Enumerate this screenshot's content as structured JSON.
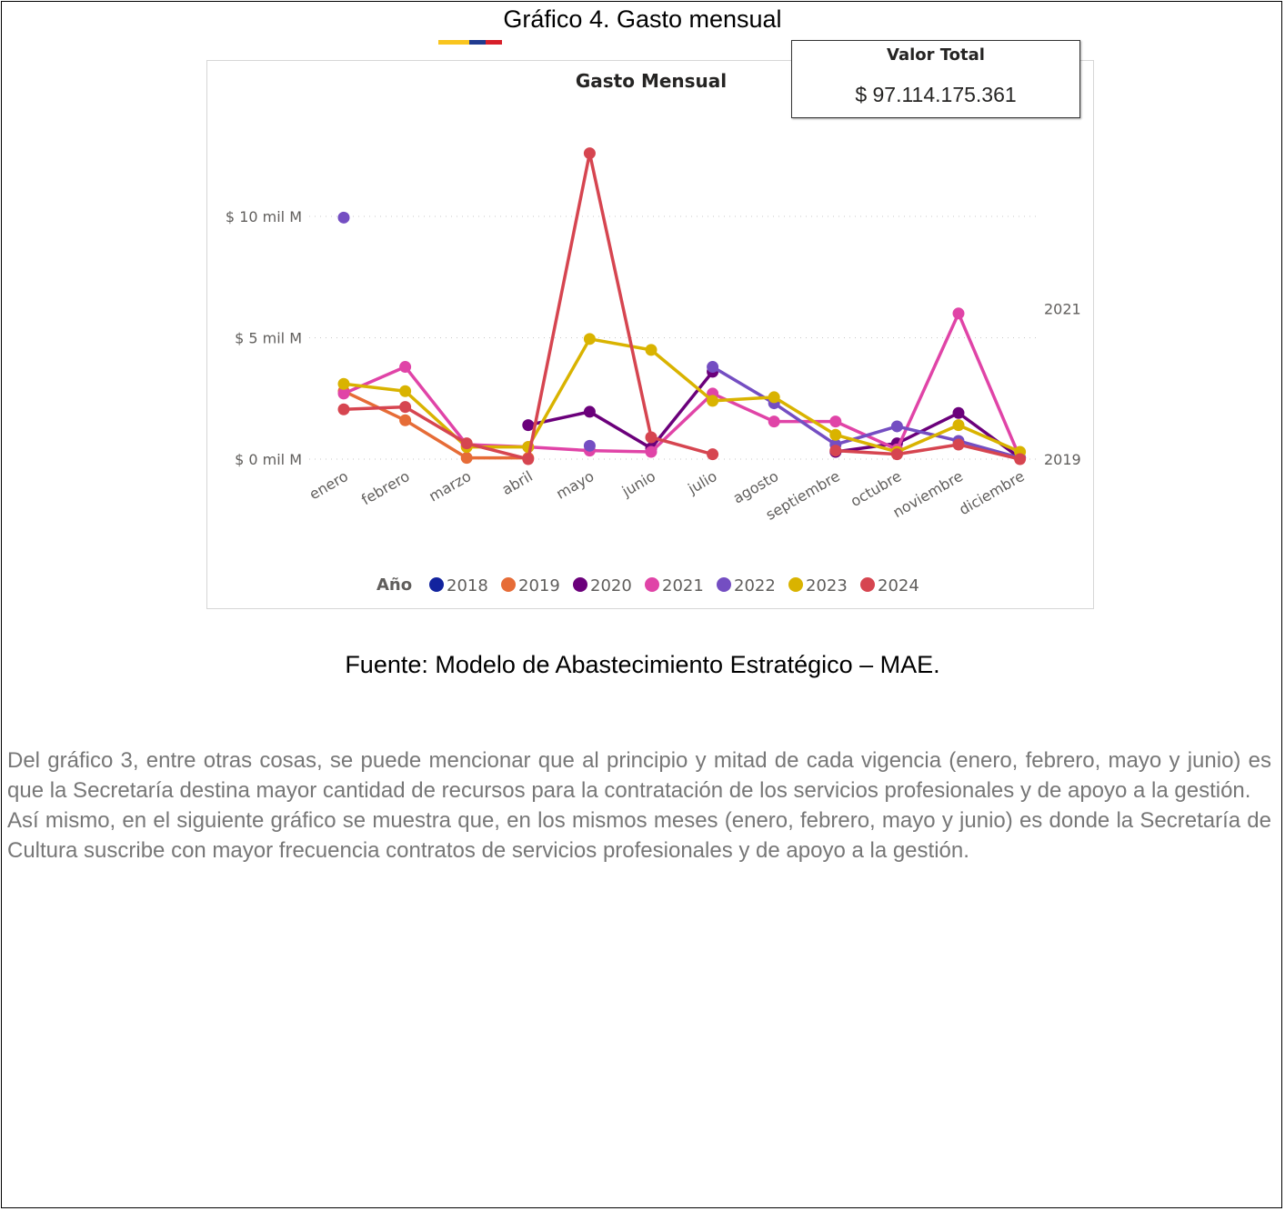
{
  "figure_caption": "Gráfico 4. Gasto mensual",
  "flag_colors": [
    "#F9C51E",
    "#213B8F",
    "#D71F2A"
  ],
  "kpi": {
    "title": "Valor Total",
    "value": "$ 97.114.175.361"
  },
  "source": "Fuente: Modelo de Abastecimiento Estratégico – MAE.",
  "paragraphs": [
    "Del gráfico 3, entre otras cosas, se puede mencionar que al principio y mitad de cada vigencia (enero, febrero, mayo y junio) es que la Secretaría destina mayor cantidad de recursos para la contratación de los servicios profesionales y de apoyo a la gestión.",
    "Así mismo, en el siguiente gráfico se muestra que, en los mismos meses (enero, febrero, mayo y junio) es donde la Secretaría de Cultura suscribe con mayor frecuencia contratos de servicios profesionales y de apoyo a la gestión."
  ],
  "chart_data": {
    "type": "line",
    "title": "Gasto Mensual",
    "xlabel": "",
    "ylabel": "",
    "categories": [
      "enero",
      "febrero",
      "marzo",
      "abril",
      "mayo",
      "junio",
      "julio",
      "agosto",
      "septiembre",
      "octubre",
      "noviembre",
      "diciembre"
    ],
    "yticks": [
      {
        "value": 0,
        "label": "$ 0 mil M"
      },
      {
        "value": 5,
        "label": "$ 5 mil M"
      },
      {
        "value": 10,
        "label": "$ 10 mil M"
      }
    ],
    "ylim": [
      0,
      12.7
    ],
    "grid": true,
    "legend_title": "Año",
    "legend_position": "bottom",
    "end_labels": [
      {
        "label": "2021",
        "value": 6.2
      },
      {
        "label": "2019",
        "value": 0
      }
    ],
    "series": [
      {
        "name": "2018",
        "color": "#12239E",
        "values": [
          null,
          null,
          null,
          null,
          null,
          null,
          null,
          null,
          null,
          null,
          null,
          null
        ]
      },
      {
        "name": "2019",
        "color": "#E66C37",
        "values": [
          2.8,
          1.6,
          0.05,
          0.05,
          null,
          null,
          null,
          null,
          null,
          null,
          null,
          null
        ]
      },
      {
        "name": "2020",
        "color": "#6B007B",
        "values": [
          null,
          null,
          null,
          1.4,
          1.95,
          0.45,
          3.6,
          null,
          0.3,
          0.65,
          1.9,
          0.05
        ]
      },
      {
        "name": "2021",
        "color": "#E044A7",
        "values": [
          2.7,
          3.8,
          0.6,
          0.5,
          0.35,
          0.3,
          2.7,
          1.55,
          1.55,
          0.4,
          6.0,
          0.05
        ]
      },
      {
        "name": "2022",
        "color": "#744EC2",
        "values": [
          9.95,
          null,
          null,
          null,
          0.55,
          null,
          3.8,
          2.3,
          0.6,
          1.35,
          0.75,
          0.05
        ]
      },
      {
        "name": "2023",
        "color": "#D9B300",
        "values": [
          3.1,
          2.8,
          0.5,
          0.5,
          4.95,
          4.5,
          2.4,
          2.55,
          1.0,
          0.3,
          1.4,
          0.3
        ]
      },
      {
        "name": "2024",
        "color": "#D64550",
        "values": [
          2.05,
          2.15,
          0.65,
          0.0,
          12.6,
          0.9,
          0.2,
          null,
          0.35,
          0.2,
          0.6,
          0.0
        ]
      }
    ]
  }
}
